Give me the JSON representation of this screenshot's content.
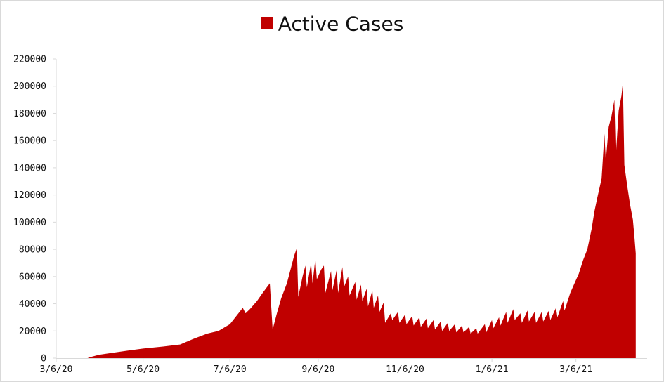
{
  "chart_data": {
    "type": "area",
    "title": "",
    "series": [
      {
        "name": "Active Cases",
        "color": "#c00000"
      }
    ],
    "xlabel": "",
    "ylabel": "",
    "ylim": [
      0,
      220000
    ],
    "yticks": [
      0,
      20000,
      40000,
      60000,
      80000,
      100000,
      120000,
      140000,
      160000,
      180000,
      200000,
      220000
    ],
    "xlim": [
      "2020-03-06",
      "2021-04-25"
    ],
    "xticks": [
      "3/6/20",
      "5/6/20",
      "7/6/20",
      "9/6/20",
      "11/6/20",
      "1/6/21",
      "3/6/21"
    ],
    "xtick_dates": [
      "2020-03-06",
      "2020-05-06",
      "2020-07-06",
      "2020-09-06",
      "2020-11-06",
      "2021-01-06",
      "2021-03-06"
    ],
    "grid": false,
    "legend_position": "top-center",
    "points": [
      [
        "2020-03-06",
        0
      ],
      [
        "2020-03-28",
        0
      ],
      [
        "2020-03-30",
        800
      ],
      [
        "2020-04-05",
        2500
      ],
      [
        "2020-04-15",
        4000
      ],
      [
        "2020-04-25",
        5500
      ],
      [
        "2020-05-06",
        7000
      ],
      [
        "2020-05-20",
        8500
      ],
      [
        "2020-06-01",
        10000
      ],
      [
        "2020-06-10",
        14000
      ],
      [
        "2020-06-20",
        18000
      ],
      [
        "2020-06-28",
        20000
      ],
      [
        "2020-07-06",
        25000
      ],
      [
        "2020-07-12",
        33000
      ],
      [
        "2020-07-15",
        37000
      ],
      [
        "2020-07-17",
        33000
      ],
      [
        "2020-07-20",
        36000
      ],
      [
        "2020-07-25",
        42000
      ],
      [
        "2020-07-29",
        48000
      ],
      [
        "2020-08-03",
        55000
      ],
      [
        "2020-08-05",
        21000
      ],
      [
        "2020-08-08",
        33000
      ],
      [
        "2020-08-11",
        44000
      ],
      [
        "2020-08-15",
        55000
      ],
      [
        "2020-08-18",
        67000
      ],
      [
        "2020-08-20",
        75000
      ],
      [
        "2020-08-22",
        81000
      ],
      [
        "2020-08-23",
        45000
      ],
      [
        "2020-08-26",
        60000
      ],
      [
        "2020-08-28",
        68000
      ],
      [
        "2020-08-29",
        52000
      ],
      [
        "2020-09-01",
        70000
      ],
      [
        "2020-09-02",
        55000
      ],
      [
        "2020-09-04",
        73000
      ],
      [
        "2020-09-05",
        58000
      ],
      [
        "2020-09-08",
        65000
      ],
      [
        "2020-09-10",
        68000
      ],
      [
        "2020-09-11",
        48000
      ],
      [
        "2020-09-15",
        64000
      ],
      [
        "2020-09-16",
        50000
      ],
      [
        "2020-09-19",
        65000
      ],
      [
        "2020-09-20",
        48000
      ],
      [
        "2020-09-23",
        67000
      ],
      [
        "2020-09-24",
        52000
      ],
      [
        "2020-09-27",
        60000
      ],
      [
        "2020-09-28",
        46000
      ],
      [
        "2020-10-02",
        56000
      ],
      [
        "2020-10-03",
        43000
      ],
      [
        "2020-10-06",
        54000
      ],
      [
        "2020-10-07",
        42000
      ],
      [
        "2020-10-10",
        51000
      ],
      [
        "2020-10-11",
        38000
      ],
      [
        "2020-10-14",
        50000
      ],
      [
        "2020-10-15",
        37000
      ],
      [
        "2020-10-18",
        46000
      ],
      [
        "2020-10-19",
        34000
      ],
      [
        "2020-10-22",
        41000
      ],
      [
        "2020-10-23",
        26000
      ],
      [
        "2020-10-27",
        33000
      ],
      [
        "2020-10-28",
        28000
      ],
      [
        "2020-11-01",
        34000
      ],
      [
        "2020-11-02",
        26000
      ],
      [
        "2020-11-06",
        32000
      ],
      [
        "2020-11-07",
        25000
      ],
      [
        "2020-11-11",
        31000
      ],
      [
        "2020-11-12",
        24000
      ],
      [
        "2020-11-16",
        30000
      ],
      [
        "2020-11-17",
        23000
      ],
      [
        "2020-11-21",
        29000
      ],
      [
        "2020-11-22",
        22000
      ],
      [
        "2020-11-26",
        28000
      ],
      [
        "2020-11-27",
        21000
      ],
      [
        "2020-12-01",
        27000
      ],
      [
        "2020-12-02",
        20000
      ],
      [
        "2020-12-06",
        26000
      ],
      [
        "2020-12-07",
        20000
      ],
      [
        "2020-12-11",
        25000
      ],
      [
        "2020-12-12",
        19000
      ],
      [
        "2020-12-16",
        24000
      ],
      [
        "2020-12-17",
        19000
      ],
      [
        "2020-12-21",
        23000
      ],
      [
        "2020-12-22",
        18000
      ],
      [
        "2020-12-26",
        22000
      ],
      [
        "2020-12-27",
        18000
      ],
      [
        "2021-01-01",
        25000
      ],
      [
        "2021-01-02",
        19000
      ],
      [
        "2021-01-06",
        28000
      ],
      [
        "2021-01-07",
        22000
      ],
      [
        "2021-01-11",
        30000
      ],
      [
        "2021-01-12",
        24000
      ],
      [
        "2021-01-16",
        34000
      ],
      [
        "2021-01-17",
        26000
      ],
      [
        "2021-01-21",
        36000
      ],
      [
        "2021-01-22",
        28000
      ],
      [
        "2021-01-26",
        33000
      ],
      [
        "2021-01-27",
        26000
      ],
      [
        "2021-01-31",
        35000
      ],
      [
        "2021-02-01",
        27000
      ],
      [
        "2021-02-05",
        34000
      ],
      [
        "2021-02-06",
        26000
      ],
      [
        "2021-02-10",
        34000
      ],
      [
        "2021-02-11",
        27000
      ],
      [
        "2021-02-15",
        35000
      ],
      [
        "2021-02-16",
        28000
      ],
      [
        "2021-02-20",
        37000
      ],
      [
        "2021-02-21",
        30000
      ],
      [
        "2021-02-25",
        42000
      ],
      [
        "2021-02-26",
        35000
      ],
      [
        "2021-03-02",
        48000
      ],
      [
        "2021-03-05",
        55000
      ],
      [
        "2021-03-08",
        62000
      ],
      [
        "2021-03-11",
        72000
      ],
      [
        "2021-03-14",
        80000
      ],
      [
        "2021-03-17",
        95000
      ],
      [
        "2021-03-19",
        108000
      ],
      [
        "2021-03-21",
        118000
      ],
      [
        "2021-03-24",
        132000
      ],
      [
        "2021-03-26",
        165000
      ],
      [
        "2021-03-27",
        145000
      ],
      [
        "2021-03-29",
        170000
      ],
      [
        "2021-03-31",
        178000
      ],
      [
        "2021-04-02",
        190000
      ],
      [
        "2021-04-03",
        148000
      ],
      [
        "2021-04-05",
        182000
      ],
      [
        "2021-04-07",
        193000
      ],
      [
        "2021-04-08",
        203000
      ],
      [
        "2021-04-09",
        142000
      ],
      [
        "2021-04-11",
        127000
      ],
      [
        "2021-04-13",
        113000
      ],
      [
        "2021-04-15",
        102000
      ],
      [
        "2021-04-16",
        90000
      ],
      [
        "2021-04-17",
        77000
      ]
    ]
  }
}
